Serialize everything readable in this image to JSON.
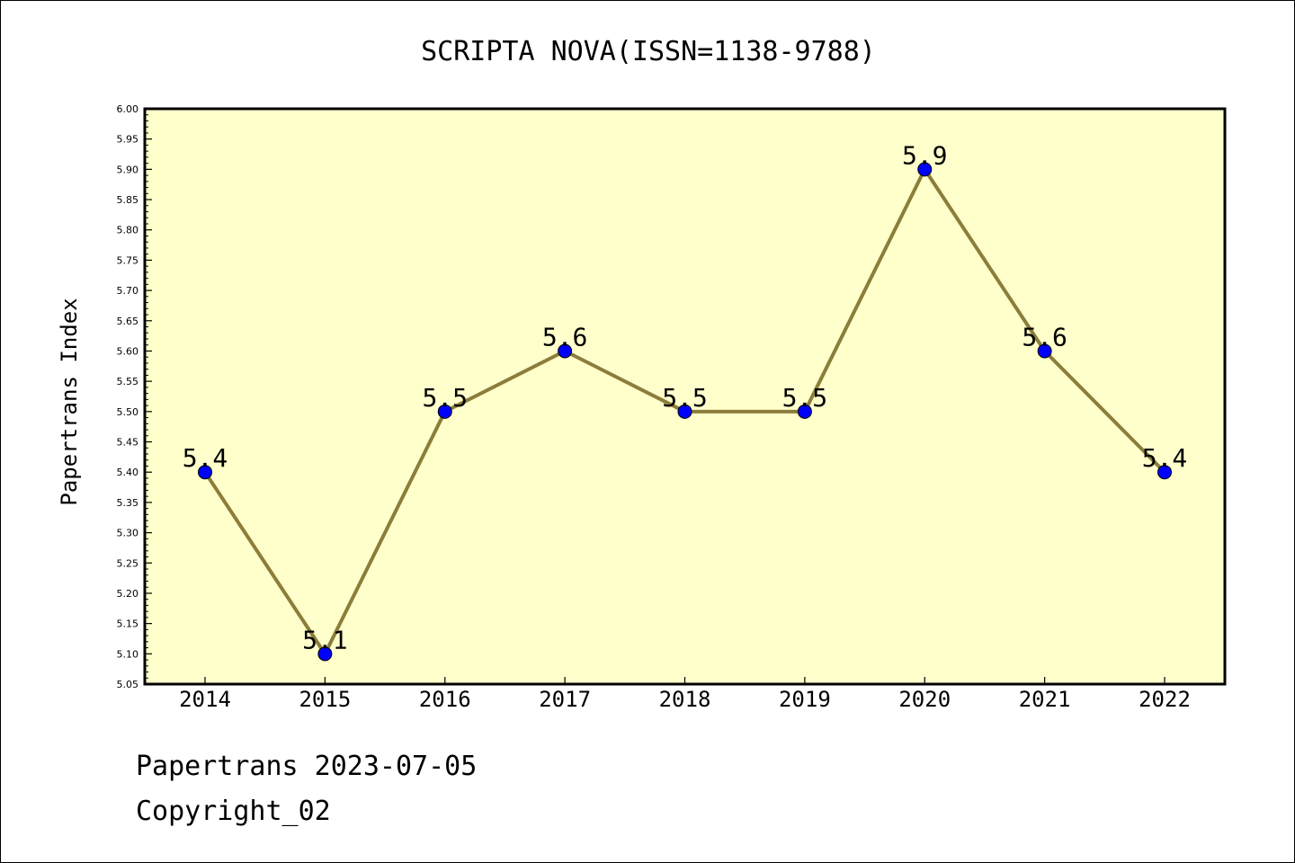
{
  "chart_data": {
    "type": "line",
    "title": "SCRIPTA NOVA(ISSN=1138-9788)",
    "xlabel": "",
    "ylabel": "Papertrans Index",
    "categories": [
      "2014",
      "2015",
      "2016",
      "2017",
      "2018",
      "2019",
      "2020",
      "2021",
      "2022"
    ],
    "series": [
      {
        "name": "Papertrans Index",
        "values": [
          5.4,
          5.1,
          5.5,
          5.6,
          5.5,
          5.5,
          5.9,
          5.6,
          5.4
        ],
        "labels": [
          "5.4",
          "5.1",
          "5.5",
          "5.6",
          "5.5",
          "5.5",
          "5.9",
          "5.6",
          "5.4"
        ]
      }
    ],
    "ylim": [
      5.05,
      6.0
    ],
    "yticks": [
      "5.05",
      "5.10",
      "5.15",
      "5.20",
      "5.25",
      "5.30",
      "5.35",
      "5.40",
      "5.45",
      "5.50",
      "5.55",
      "5.60",
      "5.65",
      "5.70",
      "5.75",
      "5.80",
      "5.85",
      "5.90",
      "5.95",
      "6.00"
    ],
    "grid": false,
    "colors": {
      "plot_background": "#ffffcc",
      "line": "#8b7d3a",
      "marker": "#0000ff",
      "marker_edge": "#000000"
    }
  },
  "footer": {
    "date_line": "Papertrans 2023-07-05",
    "copyright_line": "Copyright_02"
  }
}
